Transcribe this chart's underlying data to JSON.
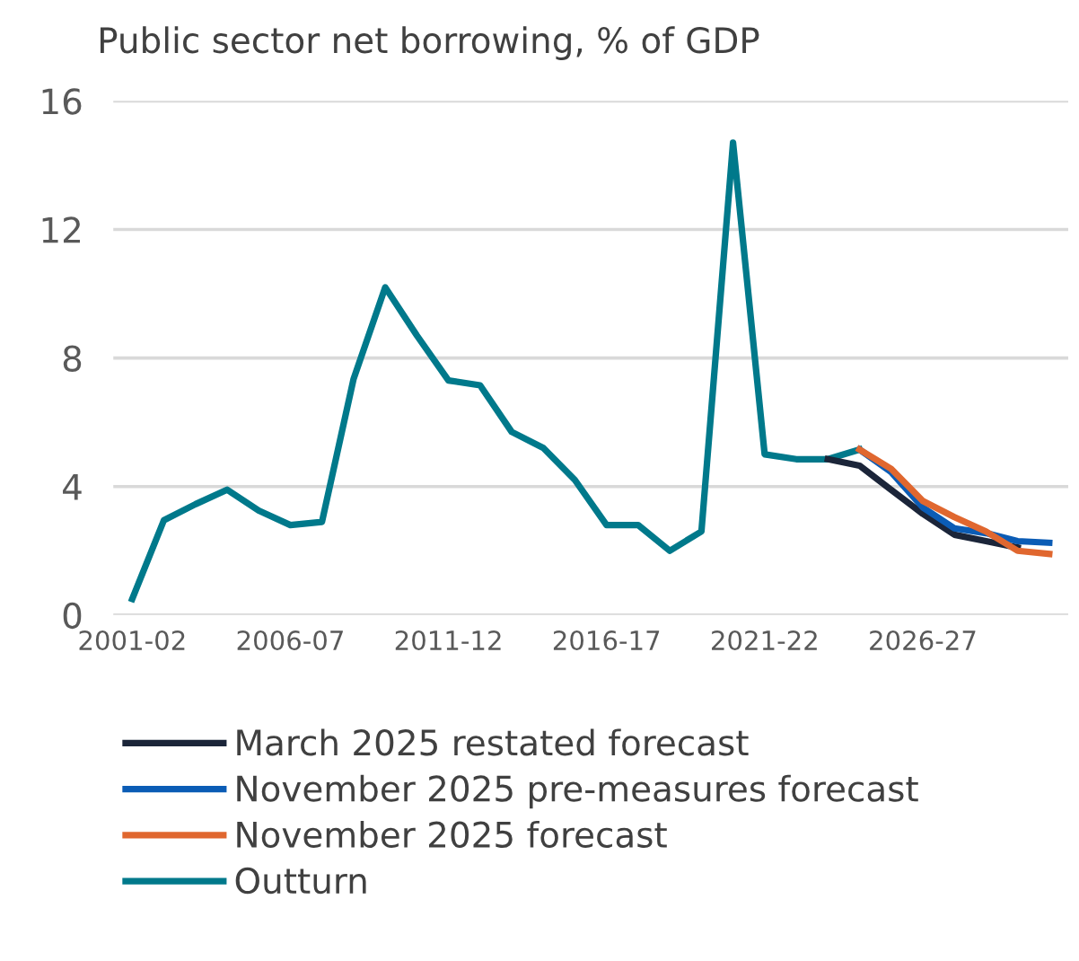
{
  "chart_data": {
    "type": "line",
    "title": "Public sector net borrowing, % of GDP",
    "categories": [
      "2001-02",
      null,
      null,
      null,
      null,
      "2006-07",
      null,
      null,
      null,
      null,
      "2011-12",
      null,
      null,
      null,
      null,
      "2016-17",
      null,
      null,
      null,
      null,
      "2021-22",
      null,
      null,
      null,
      null,
      "2026-27",
      null,
      null,
      null,
      null
    ],
    "series": [
      {
        "name": "March 2025 restated forecast",
        "color": "#1b2539",
        "values": [
          null,
          null,
          null,
          null,
          null,
          null,
          null,
          null,
          null,
          null,
          null,
          null,
          null,
          null,
          null,
          null,
          null,
          null,
          null,
          null,
          null,
          null,
          4.85,
          4.65,
          3.9,
          3.15,
          2.5,
          2.3,
          2.1,
          null
        ]
      },
      {
        "name": "November 2025 pre-measures forecast",
        "color": "#0b5cb5",
        "values": [
          null,
          null,
          null,
          null,
          null,
          null,
          null,
          null,
          null,
          null,
          null,
          null,
          null,
          null,
          null,
          null,
          null,
          null,
          null,
          null,
          null,
          null,
          null,
          5.15,
          4.45,
          3.35,
          2.7,
          2.55,
          2.3,
          2.25
        ]
      },
      {
        "name": "November 2025 forecast",
        "color": "#e0672f",
        "values": [
          null,
          null,
          null,
          null,
          null,
          null,
          null,
          null,
          null,
          null,
          null,
          null,
          null,
          null,
          null,
          null,
          null,
          null,
          null,
          null,
          null,
          null,
          null,
          5.15,
          4.55,
          3.55,
          3.05,
          2.6,
          2.0,
          1.9
        ]
      },
      {
        "name": "Outturn",
        "color": "#00798b",
        "values": [
          0.5,
          2.95,
          3.45,
          3.9,
          3.25,
          2.8,
          2.9,
          7.35,
          10.2,
          8.7,
          7.3,
          7.15,
          5.7,
          5.2,
          4.2,
          2.8,
          2.8,
          2.0,
          2.6,
          14.7,
          5.0,
          4.85,
          4.85,
          5.15,
          null,
          null,
          null,
          null,
          null,
          null
        ]
      }
    ],
    "ylim": [
      0,
      16
    ],
    "yticks": [
      0,
      4,
      8,
      12,
      16
    ],
    "grid": "y",
    "legend": "bottom",
    "marker": "none",
    "line_style": "solid"
  }
}
